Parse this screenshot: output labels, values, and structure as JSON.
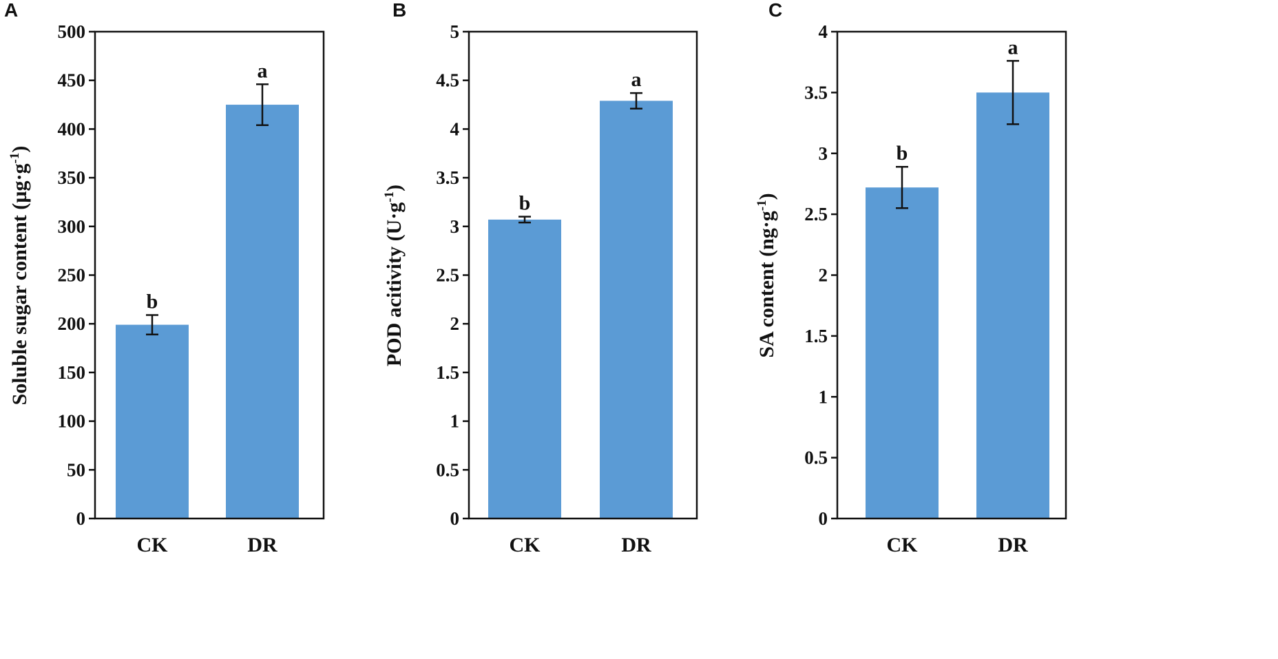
{
  "chart_data": [
    {
      "type": "bar",
      "panel": "A",
      "categories": [
        "CK",
        "DR"
      ],
      "values": [
        199,
        425
      ],
      "errors": [
        10,
        21
      ],
      "significance": [
        "b",
        "a"
      ],
      "ylabel": "Soluble sugar content (µg·g",
      "ylabel_sup": "-1",
      "ylabel_end": ")",
      "ylim": [
        0,
        500
      ],
      "yticks": [
        0,
        50,
        100,
        150,
        200,
        250,
        300,
        350,
        400,
        450,
        500
      ],
      "ytick_labels": [
        "0",
        "50",
        "100",
        "150",
        "200",
        "250",
        "300",
        "350",
        "400",
        "450",
        "500"
      ],
      "bar_color": "#5b9bd5",
      "grid": false
    },
    {
      "type": "bar",
      "panel": "B",
      "categories": [
        "CK",
        "DR"
      ],
      "values": [
        3.07,
        4.29
      ],
      "errors": [
        0.03,
        0.08
      ],
      "significance": [
        "b",
        "a"
      ],
      "ylabel": "POD acitivity (U·g",
      "ylabel_sup": "-1",
      "ylabel_end": ")",
      "ylim": [
        0,
        5
      ],
      "yticks": [
        0,
        0.5,
        1,
        1.5,
        2,
        2.5,
        3,
        3.5,
        4,
        4.5,
        5
      ],
      "ytick_labels": [
        "0",
        "0.5",
        "1",
        "1.5",
        "2",
        "2.5",
        "3",
        "3.5",
        "4",
        "4.5",
        "5"
      ],
      "bar_color": "#5b9bd5",
      "grid": false
    },
    {
      "type": "bar",
      "panel": "C",
      "categories": [
        "CK",
        "DR"
      ],
      "values": [
        2.72,
        3.5
      ],
      "errors": [
        0.17,
        0.26
      ],
      "significance": [
        "b",
        "a"
      ],
      "ylabel": "SA content (ng·g",
      "ylabel_sup": "-1",
      "ylabel_end": ")",
      "ylim": [
        0,
        4
      ],
      "yticks": [
        0,
        0.5,
        1,
        1.5,
        2,
        2.5,
        3,
        3.5,
        4
      ],
      "ytick_labels": [
        "0",
        "0.5",
        "1",
        "1.5",
        "2",
        "2.5",
        "3",
        "3.5",
        "4"
      ],
      "bar_color": "#5b9bd5",
      "grid": false
    }
  ]
}
